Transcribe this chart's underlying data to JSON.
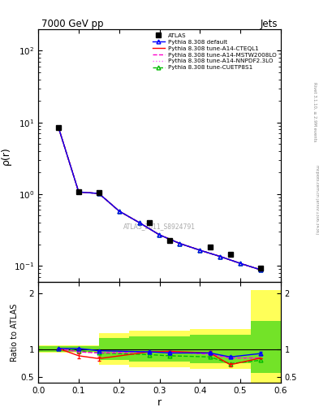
{
  "title": "7000 GeV pp",
  "title_right": "Jets",
  "ylabel_main": "ρ(r)",
  "ylabel_ratio": "Ratio to ATLAS",
  "xlabel": "r",
  "watermark": "ATLAS_2011_S8924791",
  "right_label": "Rivet 3.1.10, ≥ 2.9M events",
  "right_label2": "mcplots.cern.ch [arXiv:1306.3436]",
  "data_x": [
    0.05,
    0.1,
    0.15,
    0.275,
    0.325,
    0.425,
    0.475,
    0.55
  ],
  "data_y": [
    8.5,
    1.08,
    1.05,
    0.4,
    0.225,
    0.185,
    0.145,
    0.093
  ],
  "data_yerr": [
    0.25,
    0.04,
    0.035,
    0.015,
    0.009,
    0.008,
    0.006,
    0.004
  ],
  "lines_x": [
    0.05,
    0.1,
    0.15,
    0.2,
    0.25,
    0.3,
    0.35,
    0.4,
    0.45,
    0.5,
    0.55
  ],
  "line_default_y": [
    8.5,
    1.07,
    1.02,
    0.58,
    0.4,
    0.27,
    0.205,
    0.165,
    0.135,
    0.108,
    0.088
  ],
  "line_cteql1_y": [
    8.5,
    1.07,
    1.02,
    0.58,
    0.4,
    0.27,
    0.205,
    0.165,
    0.135,
    0.108,
    0.088
  ],
  "line_mstw_y": [
    8.5,
    1.07,
    1.02,
    0.58,
    0.4,
    0.27,
    0.205,
    0.165,
    0.135,
    0.108,
    0.088
  ],
  "line_nnpdf_y": [
    8.5,
    1.07,
    1.02,
    0.58,
    0.4,
    0.27,
    0.205,
    0.165,
    0.135,
    0.108,
    0.088
  ],
  "line_cuetp8s1_y": [
    8.5,
    1.07,
    1.02,
    0.58,
    0.4,
    0.27,
    0.205,
    0.165,
    0.135,
    0.108,
    0.088
  ],
  "ratio_x": [
    0.05,
    0.1,
    0.15,
    0.275,
    0.325,
    0.425,
    0.475,
    0.55
  ],
  "ratio_default_y": [
    1.01,
    1.01,
    0.97,
    0.95,
    0.93,
    0.93,
    0.86,
    0.92
  ],
  "ratio_default_yerr": [
    0.0,
    0.0,
    0.0,
    0.02,
    0.02,
    0.025,
    0.025,
    0.025
  ],
  "ratio_cteql1_y": [
    1.01,
    0.88,
    0.83,
    0.95,
    0.96,
    0.93,
    0.72,
    0.84
  ],
  "ratio_cteql1_yerr": [
    0.0,
    0.04,
    0.04,
    0.0,
    0.0,
    0.03,
    0.03,
    0.0
  ],
  "ratio_mstw_y": [
    1.01,
    0.95,
    0.93,
    0.95,
    0.95,
    0.91,
    0.84,
    0.84
  ],
  "ratio_mstw_yerr": [
    0.0,
    0.0,
    0.0,
    0.0,
    0.0,
    0.0,
    0.0,
    0.0
  ],
  "ratio_nnpdf_y": [
    1.01,
    0.95,
    0.93,
    0.95,
    0.95,
    0.91,
    0.84,
    0.84
  ],
  "ratio_nnpdf_yerr": [
    0.0,
    0.0,
    0.0,
    0.0,
    0.0,
    0.0,
    0.0,
    0.0
  ],
  "ratio_cuetp8s1_y": [
    1.01,
    0.97,
    0.93,
    0.9,
    0.88,
    0.86,
    0.74,
    0.8
  ],
  "ratio_cuetp8s1_yerr": [
    0.0,
    0.0,
    0.0,
    0.02,
    0.02,
    0.02,
    0.02,
    0.0
  ],
  "band_yellow_xedges": [
    0.0,
    0.15,
    0.225,
    0.375,
    0.525,
    0.6
  ],
  "band_yellow_ylo": [
    0.93,
    0.72,
    0.68,
    0.65,
    0.4,
    0.4
  ],
  "band_yellow_yhi": [
    1.07,
    1.28,
    1.32,
    1.35,
    2.05,
    2.05
  ],
  "band_green_xedges": [
    0.0,
    0.15,
    0.225,
    0.375,
    0.525,
    0.6
  ],
  "band_green_ylo": [
    0.95,
    0.8,
    0.78,
    0.75,
    0.58,
    0.58
  ],
  "band_green_yhi": [
    1.05,
    1.2,
    1.22,
    1.25,
    1.5,
    1.5
  ],
  "xlim": [
    0.0,
    0.6
  ],
  "ylim_main": [
    0.06,
    200
  ],
  "ylim_ratio": [
    0.4,
    2.2
  ],
  "colors": {
    "default": "#0000ff",
    "cteql1": "#ff0000",
    "mstw": "#ff00cc",
    "nnpdf": "#ff66ff",
    "cuetp8s1": "#00bb00"
  },
  "background_color": "#ffffff"
}
